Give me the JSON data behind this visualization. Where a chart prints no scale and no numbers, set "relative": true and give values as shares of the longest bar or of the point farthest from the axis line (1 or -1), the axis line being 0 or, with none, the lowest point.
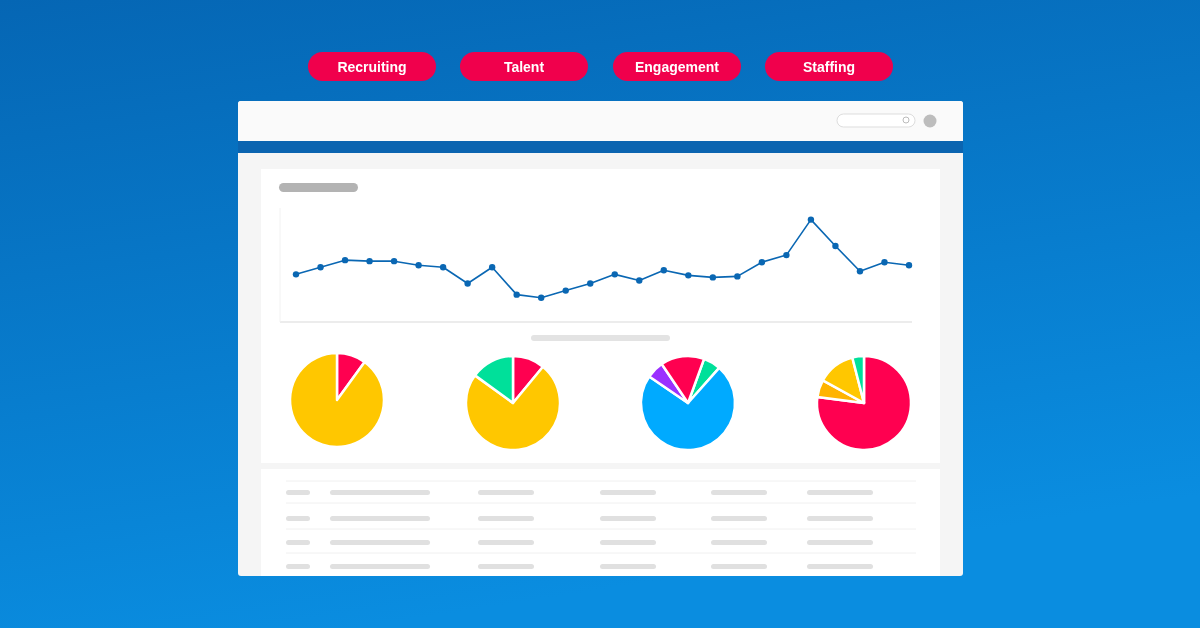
{
  "chart_data": [
    {
      "type": "other",
      "annotations": [
        "Recruiting",
        "Talent",
        "Engagement",
        "Staffing"
      ]
    },
    {
      "type": "line",
      "relative": true,
      "marker": "circle",
      "color": "#0a67b3",
      "categories": [
        null,
        null,
        null,
        null,
        null,
        null,
        null,
        null,
        null,
        null,
        null,
        null,
        null,
        null,
        null,
        null,
        null,
        null,
        null,
        null,
        null,
        null,
        null,
        null,
        null,
        null
      ],
      "values": [
        0.46,
        0.53,
        0.6,
        0.59,
        0.59,
        0.55,
        0.53,
        0.37,
        0.53,
        0.26,
        0.23,
        0.3,
        0.37,
        0.46,
        0.4,
        0.5,
        0.45,
        0.43,
        0.44,
        0.58,
        0.65,
        1,
        0.74,
        0.49,
        0.58,
        0.55
      ]
    },
    {
      "type": "pie",
      "categories": [
        null,
        null
      ],
      "values": [
        10,
        90
      ],
      "colors": [
        "#ff0050",
        "#ffc700"
      ]
    },
    {
      "type": "pie",
      "categories": [
        null,
        null,
        null
      ],
      "values": [
        11,
        74,
        15
      ],
      "colors": [
        "#ff0050",
        "#ffc700",
        "#00e09a"
      ]
    },
    {
      "type": "pie",
      "categories": [
        null,
        null,
        null,
        null
      ],
      "values": [
        6,
        73,
        6,
        15
      ],
      "colors": [
        "#00e09a",
        "#00aaff",
        "#9b30ff",
        "#ff0050"
      ]
    },
    {
      "type": "pie",
      "categories": [
        null,
        null,
        null,
        null
      ],
      "values": [
        77,
        6,
        13,
        4
      ],
      "colors": [
        "#ff0050",
        "#ffb400",
        "#ffc700",
        "#00e09a"
      ]
    }
  ]
}
